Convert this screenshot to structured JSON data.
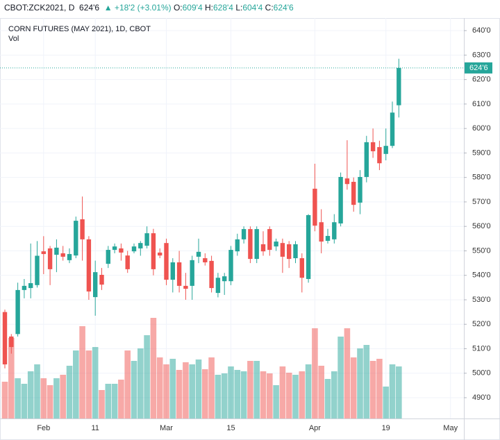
{
  "header": {
    "symbol": "CBOT:ZCK2021, D",
    "last": "624'6",
    "change": "▲ +18'2 (+3.01%)",
    "ohlc": [
      {
        "label": "O:",
        "value": "609'4"
      },
      {
        "label": "H:",
        "value": "628'4"
      },
      {
        "label": "L:",
        "value": "604'4"
      },
      {
        "label": "C:",
        "value": "624'6"
      }
    ]
  },
  "chart_data": {
    "type": "candlestick",
    "title": "CORN FUTURES (MAY 2021), 1D, CBOT",
    "volume_label": "Vol",
    "up_color": "#26a69a",
    "down_color": "#ef5350",
    "grid": true,
    "categories": [
      null,
      null,
      null,
      null,
      null,
      null,
      "Feb",
      null,
      null,
      null,
      null,
      null,
      null,
      null,
      "11",
      null,
      null,
      null,
      null,
      null,
      null,
      null,
      null,
      null,
      null,
      "Mar",
      null,
      null,
      null,
      null,
      null,
      null,
      null,
      null,
      null,
      "15",
      null,
      null,
      null,
      null,
      null,
      null,
      null,
      null,
      null,
      null,
      null,
      null,
      "Apr",
      null,
      null,
      null,
      null,
      null,
      null,
      null,
      null,
      null,
      null,
      "19",
      null,
      null,
      null,
      null,
      null,
      null,
      null,
      null,
      null,
      "May"
    ],
    "open": [
      525,
      515,
      516,
      534,
      534.8,
      536,
      549.8,
      551,
      548.4,
      549,
      546.2,
      548.1,
      562.9,
      554.7,
      531.1,
      540.2,
      544.7,
      550.4,
      551,
      548.1,
      549.8,
      551,
      552.1,
      557.2,
      549.3,
      553.2,
      538.2,
      545.3,
      535.7,
      535.7,
      547.6,
      547,
      545.9,
      532.8,
      537.6,
      537.6,
      549.8,
      554.7,
      558.9,
      546.7,
      552.7,
      558.9,
      551.8,
      553.2,
      552.7,
      547,
      547,
      538.5,
      575.4,
      561.7,
      554.1,
      554.7,
      561.2,
      579.6,
      578.2,
      569.7,
      580.2,
      594.4,
      592.4,
      589.6,
      592.9,
      609.5,
      null,
      null,
      null,
      null,
      null,
      null,
      null,
      null
    ],
    "high": [
      526,
      516,
      537,
      538.5,
      553,
      554,
      556,
      552,
      554.7,
      552,
      551,
      564,
      572.2,
      556,
      546,
      543,
      552,
      553,
      553,
      550,
      553,
      554,
      560,
      559,
      551,
      555,
      547,
      550,
      541,
      548,
      555,
      549,
      548,
      541,
      541,
      552,
      557,
      560,
      560,
      560,
      558,
      560,
      555,
      555,
      554,
      554,
      549,
      565,
      585.6,
      567,
      559,
      565,
      582,
      595.2,
      580,
      583,
      597,
      600,
      595,
      600,
      611,
      628.5,
      null,
      null,
      null,
      null,
      null,
      null,
      null,
      null
    ],
    "low": [
      502,
      508,
      515,
      530.6,
      530.6,
      535,
      540.5,
      536,
      541.3,
      546,
      545,
      547,
      546,
      530,
      523.5,
      534,
      543,
      549,
      546,
      541,
      549,
      548,
      551,
      540,
      547,
      536,
      533,
      533,
      530,
      530,
      545,
      544,
      533,
      531,
      532,
      536,
      548,
      553,
      545,
      545,
      548,
      548,
      550,
      541,
      543,
      545,
      533,
      537,
      558,
      549,
      553,
      553,
      560,
      575,
      566,
      565,
      578,
      588,
      583,
      587,
      592,
      604.5,
      null,
      null,
      null,
      null,
      null,
      null,
      null,
      null
    ],
    "close": [
      503.6,
      510.7,
      534,
      535.7,
      536.8,
      548,
      548.7,
      542.5,
      551.3,
      547.6,
      548.7,
      562.3,
      554.7,
      533.4,
      541.3,
      536.2,
      550.4,
      551.8,
      549.3,
      542.5,
      551.8,
      553.2,
      557.2,
      542.5,
      548.1,
      538.2,
      545.3,
      535.7,
      534.5,
      546.2,
      549.6,
      545.3,
      534.8,
      539,
      539.6,
      550.4,
      554.7,
      558.9,
      546.7,
      558.9,
      549.8,
      550.4,
      553.8,
      547.6,
      546.7,
      552.7,
      539,
      564.6,
      560.3,
      553.8,
      556.1,
      561.7,
      580.2,
      577.3,
      568.8,
      580.2,
      594.4,
      590.7,
      585.8,
      592.9,
      606.5,
      624.75,
      null,
      null,
      null,
      null,
      null,
      null,
      null,
      null
    ],
    "volume": [
      53,
      116,
      58,
      50,
      68,
      78,
      58,
      48,
      58,
      63,
      76,
      98,
      133,
      98,
      103,
      41,
      50,
      50,
      56,
      98,
      83,
      101,
      120,
      145,
      88,
      78,
      86,
      70,
      81,
      78,
      85,
      71,
      88,
      63,
      65,
      75,
      70,
      68,
      83,
      83,
      68,
      65,
      48,
      75,
      66,
      63,
      68,
      78,
      130,
      76,
      57,
      68,
      118,
      130,
      88,
      101,
      106,
      83,
      86,
      46,
      78,
      75,
      null,
      null,
      null,
      null,
      null,
      null,
      null,
      null
    ],
    "last_price": {
      "value": 624.75,
      "label": "624'6"
    },
    "ylim": [
      481.5,
      644
    ],
    "yticks": [
      {
        "value": 490,
        "label": "490'0"
      },
      {
        "value": 500,
        "label": "500'0"
      },
      {
        "value": 510,
        "label": "510'0"
      },
      {
        "value": 520,
        "label": "520'0"
      },
      {
        "value": 530,
        "label": "530'0"
      },
      {
        "value": 540,
        "label": "540'0"
      },
      {
        "value": 550,
        "label": "550'0"
      },
      {
        "value": 560,
        "label": "560'0"
      },
      {
        "value": 570,
        "label": "570'0"
      },
      {
        "value": 580,
        "label": "580'0"
      },
      {
        "value": 590,
        "label": "590'0"
      },
      {
        "value": 600,
        "label": "600'0"
      },
      {
        "value": 610,
        "label": "610'0"
      },
      {
        "value": 620,
        "label": "620'0"
      },
      {
        "value": 630,
        "label": "630'0"
      },
      {
        "value": 640,
        "label": "640'0"
      }
    ]
  }
}
